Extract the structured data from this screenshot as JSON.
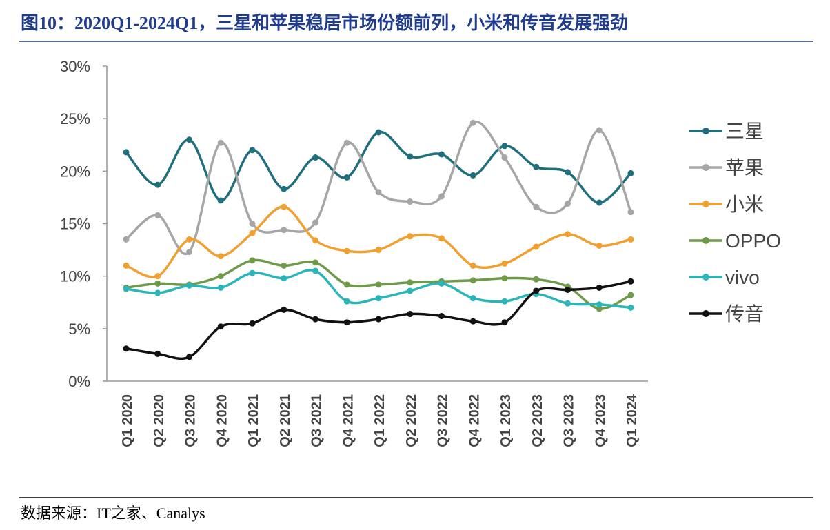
{
  "chart_data": {
    "type": "line",
    "title": "图10：2020Q1-2024Q1，三星和苹果稳居市场份额前列，小米和传音发展强劲",
    "source": "数据来源：IT之家、Canalys",
    "categories": [
      "Q1 2020",
      "Q2 2020",
      "Q3 2020",
      "Q4 2020",
      "Q1 2021",
      "Q2 2021",
      "Q3 2021",
      "Q4 2021",
      "Q1 2022",
      "Q2 2022",
      "Q3 2022",
      "Q4 2022",
      "Q1 2023",
      "Q2 2023",
      "Q3 2023",
      "Q4 2023",
      "Q1 2024"
    ],
    "series": [
      {
        "name": "三星",
        "color": "#1f6f7c",
        "values": [
          21.8,
          18.7,
          23.0,
          17.2,
          22.0,
          18.3,
          21.3,
          19.4,
          23.7,
          21.4,
          21.6,
          19.6,
          22.4,
          20.4,
          19.9,
          17.0,
          19.8
        ]
      },
      {
        "name": "苹果",
        "color": "#a6a6a6",
        "values": [
          13.5,
          15.8,
          12.3,
          22.7,
          15.0,
          14.4,
          15.1,
          22.7,
          18.0,
          17.1,
          17.6,
          24.6,
          21.3,
          16.6,
          16.9,
          23.9,
          16.1
        ]
      },
      {
        "name": "小米",
        "color": "#f0a030",
        "values": [
          11.0,
          10.0,
          13.5,
          11.9,
          14.1,
          16.6,
          13.4,
          12.4,
          12.5,
          13.8,
          13.6,
          11.0,
          11.2,
          12.8,
          14.0,
          12.9,
          13.5
        ]
      },
      {
        "name": "OPPO",
        "color": "#6f9a4a",
        "values": [
          8.9,
          9.3,
          9.2,
          10.0,
          11.5,
          11.0,
          11.3,
          9.2,
          9.2,
          9.4,
          9.5,
          9.6,
          9.8,
          9.7,
          9.0,
          6.9,
          8.2
        ]
      },
      {
        "name": "vivo",
        "color": "#2bb5b8",
        "values": [
          8.8,
          8.4,
          9.1,
          8.9,
          10.3,
          9.8,
          10.5,
          7.6,
          7.9,
          8.6,
          9.3,
          7.9,
          7.6,
          8.3,
          7.4,
          7.3,
          7.0
        ]
      },
      {
        "name": "传音",
        "color": "#111111",
        "values": [
          3.1,
          2.6,
          2.3,
          5.2,
          5.5,
          6.8,
          5.9,
          5.6,
          5.9,
          6.4,
          6.2,
          5.7,
          5.6,
          8.6,
          8.7,
          8.9,
          9.5
        ]
      }
    ],
    "ylim": [
      0,
      30
    ],
    "yticks": [
      {
        "value": 0,
        "label": "0%"
      },
      {
        "value": 5,
        "label": "5%"
      },
      {
        "value": 10,
        "label": "10%"
      },
      {
        "value": 15,
        "label": "15%"
      },
      {
        "value": 20,
        "label": "20%"
      },
      {
        "value": 25,
        "label": "25%"
      },
      {
        "value": 30,
        "label": "30%"
      }
    ],
    "legend": "right"
  }
}
